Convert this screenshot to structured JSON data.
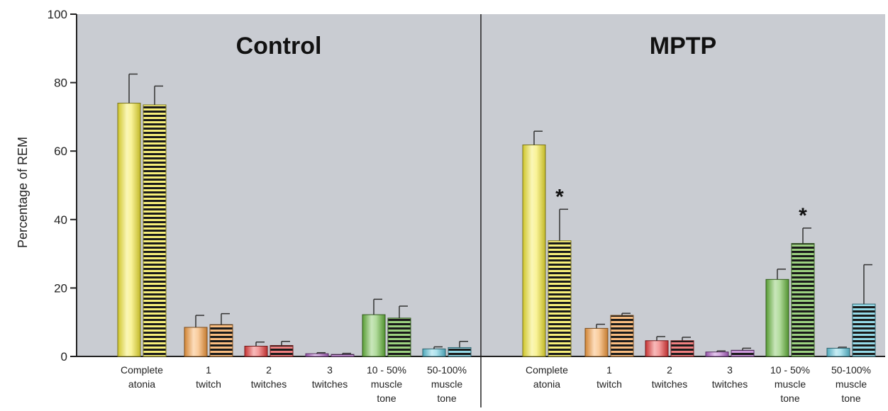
{
  "chart_data": {
    "type": "bar",
    "ylabel": "Percentage of REM",
    "ylim": [
      0,
      100
    ],
    "yticks": [
      "0",
      "20",
      "40",
      "60",
      "80",
      "100"
    ],
    "grid": false,
    "categories": [
      [
        "Complete",
        "atonia"
      ],
      [
        "1",
        "twitch"
      ],
      [
        "2",
        "twitches"
      ],
      [
        "3",
        "twitches"
      ],
      [
        "10 - 50%",
        "muscle",
        "tone"
      ],
      [
        "50-100%",
        "muscle",
        "tone"
      ]
    ],
    "colors": [
      "#f2e632",
      "#f59a3c",
      "#e83a3a",
      "#b061c8",
      "#66b83c",
      "#5cc6dc"
    ],
    "series_styles": [
      "solid",
      "horizontal-stripes"
    ],
    "panels": [
      {
        "title": "Control",
        "bars": [
          {
            "values": [
              74,
              73.5
            ],
            "errors": [
              8.5,
              5.5
            ]
          },
          {
            "values": [
              8.5,
              9.3
            ],
            "errors": [
              3.5,
              3.2
            ]
          },
          {
            "values": [
              3,
              3.2
            ],
            "errors": [
              1.2,
              1.2
            ]
          },
          {
            "values": [
              0.8,
              0.6
            ],
            "errors": [
              0.3,
              0.3
            ]
          },
          {
            "values": [
              12.2,
              11.2
            ],
            "errors": [
              4.5,
              3.5
            ]
          },
          {
            "values": [
              2.2,
              2.6
            ],
            "errors": [
              0.6,
              1.8
            ]
          }
        ],
        "annotations": []
      },
      {
        "title": "MPTP",
        "bars": [
          {
            "values": [
              61.8,
              33.8
            ],
            "errors": [
              4,
              9.2
            ]
          },
          {
            "values": [
              8.2,
              12
            ],
            "errors": [
              1.2,
              0.6
            ]
          },
          {
            "values": [
              4.6,
              4.6
            ],
            "errors": [
              1.2,
              1
            ]
          },
          {
            "values": [
              1.3,
              1.8
            ],
            "errors": [
              0.3,
              0.6
            ]
          },
          {
            "values": [
              22.5,
              33
            ],
            "errors": [
              3,
              4.5
            ]
          },
          {
            "values": [
              2.4,
              15.3
            ],
            "errors": [
              0.3,
              11.5
            ]
          }
        ],
        "annotations": [
          {
            "category_index": 0,
            "series_index": 1,
            "text": "*"
          },
          {
            "category_index": 4,
            "series_index": 1,
            "text": "*"
          }
        ]
      }
    ]
  }
}
